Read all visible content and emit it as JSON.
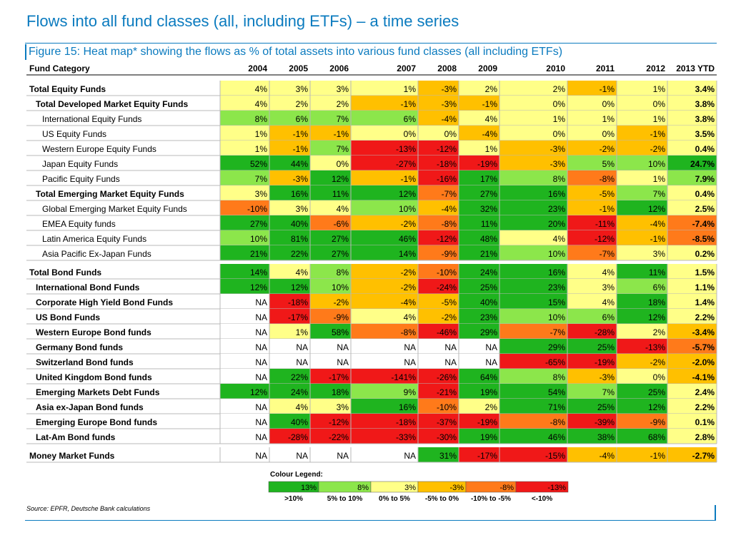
{
  "page_title": "Flows into all fund classes (all, including ETFs) – a time series",
  "figure_title": "Figure 15: Heat map* showing the flows as % of total assets into various fund classes (all including ETFs)",
  "source": "Source: EPFR, Deutsche Bank calculations",
  "colors": {
    "dark_green": "#1fb41f",
    "light_green": "#8ce64b",
    "yellow": "#ffff88",
    "amber": "#ffc000",
    "orange": "#ff7a1a",
    "red": "#f01818",
    "na": "#ffffff",
    "grid": "#b8b8b8"
  },
  "chart_data": {
    "type": "table",
    "title": "Figure 15: Heat map* showing the flows as % of total assets into various fund classes (all including ETFs)",
    "header_label": "Fund Category",
    "columns": [
      "2004",
      "2005",
      "2006",
      "2007",
      "2008",
      "2009",
      "2010",
      "2011",
      "2012",
      "2013 YTD"
    ],
    "rows": [
      {
        "name": "Total Equity Funds",
        "level": 0,
        "gap": false,
        "values": [
          "4%",
          "3%",
          "3%",
          "1%",
          "-3%",
          "2%",
          "2%",
          "-1%",
          "1%",
          "3.4%"
        ]
      },
      {
        "name": "Total Developed Market Equity Funds",
        "level": 1,
        "gap": false,
        "values": [
          "4%",
          "2%",
          "2%",
          "-1%",
          "-3%",
          "-1%",
          "0%",
          "0%",
          "0%",
          "3.8%"
        ]
      },
      {
        "name": "International Equity Funds",
        "level": 2,
        "gap": false,
        "values": [
          "8%",
          "6%",
          "7%",
          "6%",
          "-4%",
          "4%",
          "1%",
          "1%",
          "1%",
          "3.8%"
        ]
      },
      {
        "name": "US Equity Funds",
        "level": 2,
        "gap": false,
        "values": [
          "1%",
          "-1%",
          "-1%",
          "0%",
          "0%",
          "-4%",
          "0%",
          "0%",
          "-1%",
          "3.5%"
        ]
      },
      {
        "name": "Western Europe Equity Funds",
        "level": 2,
        "gap": false,
        "values": [
          "1%",
          "-1%",
          "7%",
          "-13%",
          "-12%",
          "1%",
          "-3%",
          "-2%",
          "-2%",
          "0.4%"
        ]
      },
      {
        "name": "Japan Equity Funds",
        "level": 2,
        "gap": false,
        "values": [
          "52%",
          "44%",
          "0%",
          "-27%",
          "-18%",
          "-19%",
          "-3%",
          "5%",
          "10%",
          "24.7%"
        ]
      },
      {
        "name": "Pacific Equity Funds",
        "level": 2,
        "gap": false,
        "values": [
          "7%",
          "-3%",
          "12%",
          "-1%",
          "-16%",
          "17%",
          "8%",
          "-8%",
          "1%",
          "7.9%"
        ]
      },
      {
        "name": "Total Emerging Market Equity Funds",
        "level": 1,
        "gap": false,
        "values": [
          "3%",
          "16%",
          "11%",
          "12%",
          "-7%",
          "27%",
          "16%",
          "-5%",
          "7%",
          "0.4%"
        ]
      },
      {
        "name": "Global Emerging Market Equity Funds",
        "level": 2,
        "gap": false,
        "values": [
          "-10%",
          "3%",
          "4%",
          "10%",
          "-4%",
          "32%",
          "23%",
          "-1%",
          "12%",
          "2.5%"
        ]
      },
      {
        "name": "EMEA Equity funds",
        "level": 2,
        "gap": false,
        "values": [
          "27%",
          "40%",
          "-6%",
          "-2%",
          "-8%",
          "11%",
          "20%",
          "-11%",
          "-4%",
          "-7.4%"
        ]
      },
      {
        "name": "Latin America Equity Funds",
        "level": 2,
        "gap": false,
        "values": [
          "10%",
          "81%",
          "27%",
          "46%",
          "-12%",
          "48%",
          "4%",
          "-12%",
          "-1%",
          "-8.5%"
        ]
      },
      {
        "name": "Asia Pacific Ex-Japan Funds",
        "level": 2,
        "gap": false,
        "values": [
          "21%",
          "22%",
          "27%",
          "14%",
          "-9%",
          "21%",
          "10%",
          "-7%",
          "3%",
          "0.2%"
        ]
      },
      {
        "name": "Total Bond Funds",
        "level": 0,
        "gap": true,
        "values": [
          "14%",
          "4%",
          "8%",
          "-2%",
          "-10%",
          "24%",
          "16%",
          "4%",
          "11%",
          "1.5%"
        ]
      },
      {
        "name": "International Bond Funds",
        "level": 1,
        "gap": false,
        "values": [
          "12%",
          "12%",
          "10%",
          "-2%",
          "-24%",
          "25%",
          "23%",
          "3%",
          "6%",
          "1.1%"
        ]
      },
      {
        "name": "Corporate High Yield Bond Funds",
        "level": 1,
        "gap": false,
        "values": [
          "NA",
          "-18%",
          "-2%",
          "-4%",
          "-5%",
          "40%",
          "15%",
          "4%",
          "18%",
          "1.4%"
        ]
      },
      {
        "name": "US Bond Funds",
        "level": 1,
        "gap": false,
        "values": [
          "NA",
          "-17%",
          "-9%",
          "4%",
          "-2%",
          "23%",
          "10%",
          "6%",
          "12%",
          "2.2%"
        ]
      },
      {
        "name": "Western Europe Bond funds",
        "level": 1,
        "gap": false,
        "values": [
          "NA",
          "1%",
          "58%",
          "-8%",
          "-46%",
          "29%",
          "-7%",
          "-28%",
          "2%",
          "-3.4%"
        ]
      },
      {
        "name": "Germany Bond funds",
        "level": 1,
        "gap": false,
        "values": [
          "NA",
          "NA",
          "NA",
          "NA",
          "NA",
          "NA",
          "29%",
          "25%",
          "-13%",
          "-5.7%"
        ]
      },
      {
        "name": "Switzerland Bond funds",
        "level": 1,
        "gap": false,
        "values": [
          "NA",
          "NA",
          "NA",
          "NA",
          "NA",
          "NA",
          "-65%",
          "-19%",
          "-2%",
          "-2.0%"
        ]
      },
      {
        "name": "United Kingdom Bond funds",
        "level": 1,
        "gap": false,
        "values": [
          "NA",
          "22%",
          "-17%",
          "-141%",
          "-26%",
          "64%",
          "8%",
          "-3%",
          "0%",
          "-4.1%"
        ]
      },
      {
        "name": "Emerging Markets Debt Funds",
        "level": 1,
        "gap": false,
        "values": [
          "12%",
          "24%",
          "18%",
          "9%",
          "-21%",
          "19%",
          "54%",
          "7%",
          "25%",
          "2.4%"
        ]
      },
      {
        "name": "Asia ex-Japan Bond funds",
        "level": 1,
        "gap": false,
        "values": [
          "NA",
          "4%",
          "3%",
          "16%",
          "-10%",
          "2%",
          "71%",
          "25%",
          "12%",
          "2.2%"
        ]
      },
      {
        "name": "Emerging Europe Bond funds",
        "level": 1,
        "gap": false,
        "values": [
          "NA",
          "40%",
          "-12%",
          "-18%",
          "-37%",
          "-19%",
          "-8%",
          "-39%",
          "-9%",
          "0.1%"
        ]
      },
      {
        "name": "Lat-Am Bond funds",
        "level": 1,
        "gap": false,
        "values": [
          "NA",
          "-28%",
          "-22%",
          "-33%",
          "-30%",
          "19%",
          "46%",
          "38%",
          "68%",
          "2.8%"
        ]
      },
      {
        "name": "Money Market Funds",
        "level": 0,
        "gap": true,
        "values": [
          "NA",
          "NA",
          "NA",
          "NA",
          "31%",
          "-17%",
          "-15%",
          "-4%",
          "-1%",
          "-2.7%"
        ]
      }
    ],
    "legend": {
      "title": "Colour Legend:",
      "items": [
        {
          "sample": "13%",
          "range": ">10%",
          "color": "#1fb41f"
        },
        {
          "sample": "8%",
          "range": "5% to 10%",
          "color": "#8ce64b"
        },
        {
          "sample": "3%",
          "range": "0% to 5%",
          "color": "#ffff88"
        },
        {
          "sample": "-3%",
          "range": "-5% to 0%",
          "color": "#ffc000"
        },
        {
          "sample": "-8%",
          "range": "-10% to -5%",
          "color": "#ff7a1a"
        },
        {
          "sample": "-13%",
          "range": "<-10%",
          "color": "#f01818"
        }
      ]
    }
  }
}
